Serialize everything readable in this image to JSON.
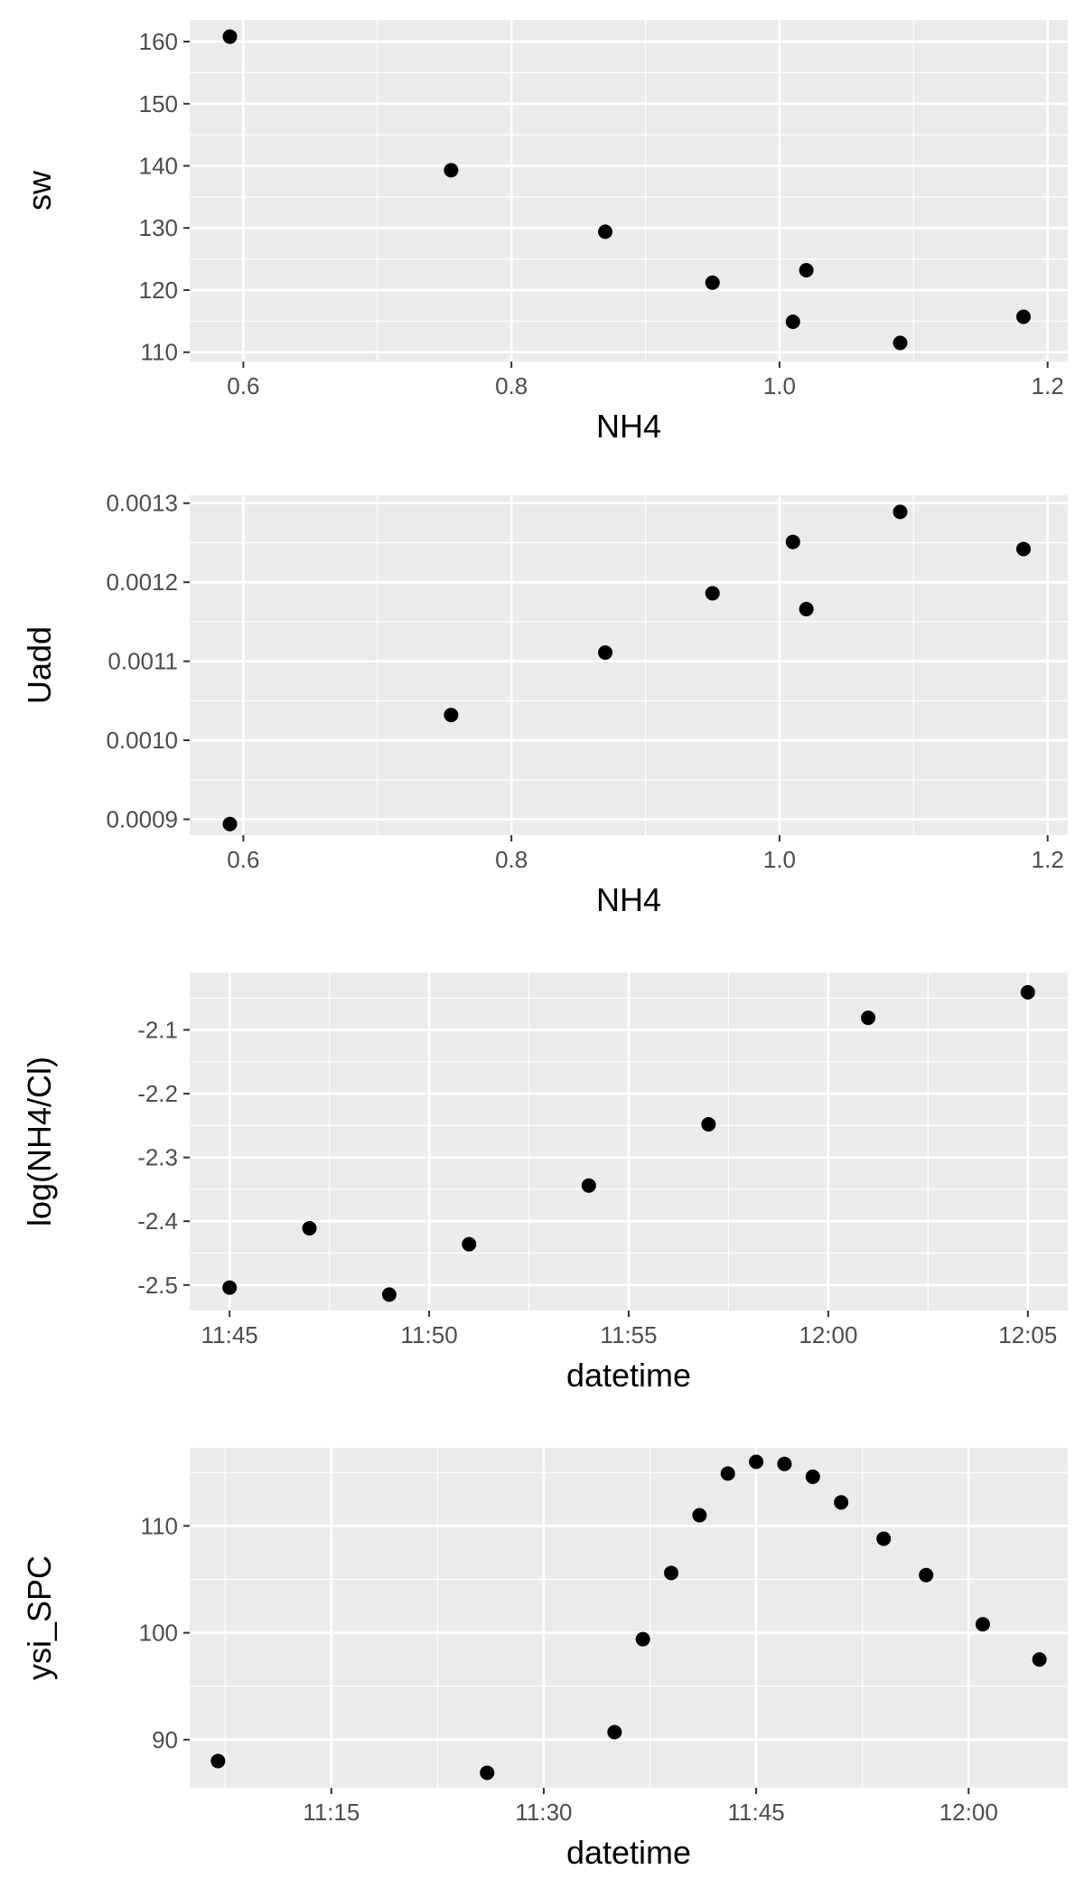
{
  "chart_data": [
    {
      "type": "scatter",
      "xlabel": "NH4",
      "ylabel": "sw",
      "xlim": [
        0.56,
        1.215
      ],
      "ylim": [
        108.5,
        163.5
      ],
      "x_ticks": [
        0.6,
        0.8,
        1.0,
        1.2
      ],
      "x_tick_labels": [
        "0.6",
        "0.8",
        "1.0",
        "1.2"
      ],
      "y_ticks": [
        110,
        120,
        130,
        140,
        150,
        160
      ],
      "y_tick_labels": [
        "110",
        "120",
        "130",
        "140",
        "150",
        "160"
      ],
      "grid": true,
      "points": [
        {
          "x": 0.59,
          "y": 160.8
        },
        {
          "x": 0.755,
          "y": 139.3
        },
        {
          "x": 0.87,
          "y": 129.4
        },
        {
          "x": 0.95,
          "y": 121.2
        },
        {
          "x": 1.01,
          "y": 114.9
        },
        {
          "x": 1.02,
          "y": 123.2
        },
        {
          "x": 1.09,
          "y": 111.5
        },
        {
          "x": 1.182,
          "y": 115.7
        }
      ]
    },
    {
      "type": "scatter",
      "xlabel": "NH4",
      "ylabel": "Uadd",
      "xlim": [
        0.56,
        1.215
      ],
      "ylim": [
        0.00088,
        0.00131
      ],
      "x_ticks": [
        0.6,
        0.8,
        1.0,
        1.2
      ],
      "x_tick_labels": [
        "0.6",
        "0.8",
        "1.0",
        "1.2"
      ],
      "y_ticks": [
        0.0009,
        0.001,
        0.0011,
        0.0012,
        0.0013
      ],
      "y_tick_labels": [
        "0.0009",
        "0.0010",
        "0.0011",
        "0.0012",
        "0.0013"
      ],
      "grid": true,
      "points": [
        {
          "x": 0.59,
          "y": 0.000894
        },
        {
          "x": 0.755,
          "y": 0.001032
        },
        {
          "x": 0.87,
          "y": 0.001111
        },
        {
          "x": 0.95,
          "y": 0.001186
        },
        {
          "x": 1.01,
          "y": 0.001251
        },
        {
          "x": 1.02,
          "y": 0.001166
        },
        {
          "x": 1.09,
          "y": 0.001289
        },
        {
          "x": 1.182,
          "y": 0.001242
        }
      ]
    },
    {
      "type": "scatter",
      "xlabel": "datetime",
      "ylabel": "log(NH4/Cl)",
      "xlim": [
        "11:44:00",
        "12:06:00"
      ],
      "ylim": [
        -2.54,
        -2.01
      ],
      "x_ticks": [
        "11:45",
        "11:50",
        "11:55",
        "12:00",
        "12:05"
      ],
      "x_tick_labels": [
        "11:45",
        "11:50",
        "11:55",
        "12:00",
        "12:05"
      ],
      "y_ticks": [
        -2.5,
        -2.4,
        -2.3,
        -2.2,
        -2.1
      ],
      "y_tick_labels": [
        "-2.5",
        "-2.4",
        "-2.3",
        "-2.2",
        "-2.1"
      ],
      "grid": true,
      "points": [
        {
          "x": "11:45",
          "y": -2.504
        },
        {
          "x": "11:47",
          "y": -2.411
        },
        {
          "x": "11:49",
          "y": -2.515
        },
        {
          "x": "11:51",
          "y": -2.436
        },
        {
          "x": "11:54",
          "y": -2.344
        },
        {
          "x": "11:57",
          "y": -2.248
        },
        {
          "x": "12:01",
          "y": -2.081
        },
        {
          "x": "12:05",
          "y": -2.041
        }
      ]
    },
    {
      "type": "scatter",
      "xlabel": "datetime",
      "ylabel": "ysi_SPC",
      "xlim": [
        "11:05:00",
        "12:07:00"
      ],
      "ylim": [
        85.5,
        117.3
      ],
      "x_ticks": [
        "11:15",
        "11:30",
        "11:45",
        "12:00"
      ],
      "x_tick_labels": [
        "11:15",
        "11:30",
        "11:45",
        "12:00"
      ],
      "y_ticks": [
        90,
        100,
        110
      ],
      "y_tick_labels": [
        "90",
        "100",
        "110"
      ],
      "grid": true,
      "points": [
        {
          "x": "11:07",
          "y": 88.0
        },
        {
          "x": "11:26",
          "y": 86.9
        },
        {
          "x": "11:35",
          "y": 90.7
        },
        {
          "x": "11:37",
          "y": 99.4
        },
        {
          "x": "11:39",
          "y": 105.6
        },
        {
          "x": "11:41",
          "y": 111.0
        },
        {
          "x": "11:43",
          "y": 114.9
        },
        {
          "x": "11:45",
          "y": 116.0
        },
        {
          "x": "11:47",
          "y": 115.8
        },
        {
          "x": "11:49",
          "y": 114.6
        },
        {
          "x": "11:51",
          "y": 112.2
        },
        {
          "x": "11:54",
          "y": 108.8
        },
        {
          "x": "11:57",
          "y": 105.4
        },
        {
          "x": "12:01",
          "y": 100.8
        },
        {
          "x": "12:05",
          "y": 97.5
        }
      ]
    }
  ]
}
